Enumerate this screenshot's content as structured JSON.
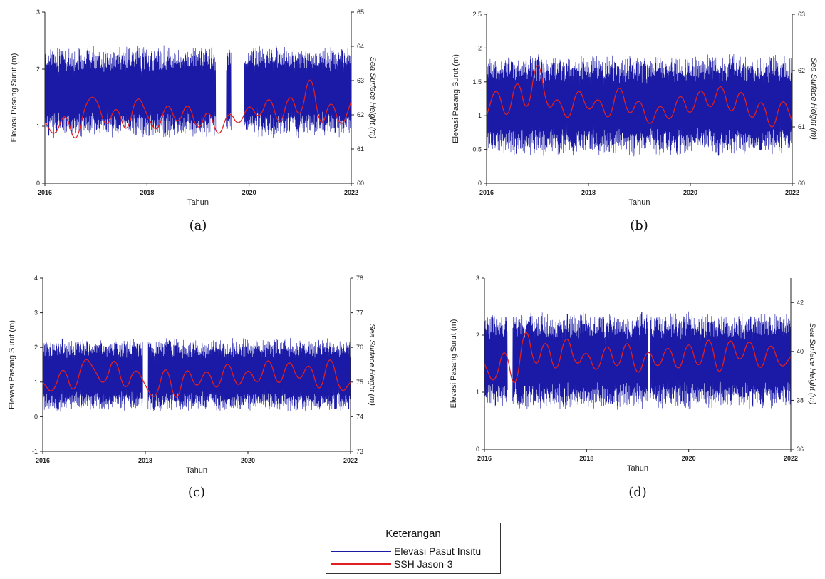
{
  "chart_data": [
    {
      "type": "line",
      "panel": "(a)",
      "caption": "(a)",
      "xlabel": "Tahun",
      "ylabel": "Elevasi Pasang Surut (m)",
      "y2label": "Sea Surface Height (m)",
      "xlim": [
        2016,
        2022
      ],
      "xticks": [
        "2016",
        "2018",
        "2020",
        "2022"
      ],
      "ylim": [
        0,
        3
      ],
      "yticks": [
        "0",
        "1",
        "2",
        "3"
      ],
      "y2lim": [
        60,
        65
      ],
      "y2ticks": [
        "60",
        "61",
        "62",
        "63",
        "64",
        "65"
      ],
      "series": [
        {
          "name": "Elevasi Pasut Insitu",
          "color": "#1a1aa6",
          "axis": "left",
          "mean": 1.6,
          "amplitude": 0.75,
          "gaps": [
            [
              2019.35,
              2019.55
            ],
            [
              2019.65,
              2019.9
            ]
          ]
        },
        {
          "name": "SSH Jason-3",
          "color": "#e02020",
          "axis": "right",
          "x": [
            2016.0,
            2016.2,
            2016.4,
            2016.6,
            2016.8,
            2017.0,
            2017.2,
            2017.4,
            2017.6,
            2017.8,
            2018.0,
            2018.2,
            2018.4,
            2018.6,
            2018.8,
            2019.0,
            2019.2,
            2019.4,
            2019.6,
            2019.8,
            2020.0,
            2020.2,
            2020.4,
            2020.6,
            2020.8,
            2021.0,
            2021.2,
            2021.4,
            2021.6,
            2021.8,
            2022.0
          ],
          "y": [
            61.8,
            61.3,
            62.2,
            61.0,
            62.4,
            62.6,
            61.5,
            62.4,
            61.3,
            62.7,
            62.0,
            61.4,
            62.5,
            61.6,
            62.5,
            61.4,
            62.3,
            61.2,
            62.2,
            61.6,
            62.4,
            61.8,
            62.7,
            61.5,
            62.8,
            61.7,
            63.5,
            61.4,
            62.6,
            61.5,
            62.4
          ]
        }
      ]
    },
    {
      "type": "line",
      "panel": "(b)",
      "caption": "(b)",
      "xlabel": "Tahun",
      "ylabel": "Elevasi Pasang Surut (m)",
      "y2label": "Sea Surface Height (m)",
      "xlim": [
        2016,
        2022
      ],
      "xticks": [
        "2016",
        "2018",
        "2020",
        "2022"
      ],
      "ylim": [
        0,
        2.5
      ],
      "yticks": [
        "0",
        "0.5",
        "1",
        "1.5",
        "2",
        "2.5"
      ],
      "y2lim": [
        60,
        63
      ],
      "y2ticks": [
        "60",
        "61",
        "62",
        "63"
      ],
      "series": [
        {
          "name": "Elevasi Pasut Insitu",
          "color": "#1a1aa6",
          "axis": "left",
          "mean": 1.15,
          "amplitude": 0.7,
          "gaps": []
        },
        {
          "name": "SSH Jason-3",
          "color": "#e02020",
          "axis": "right",
          "x": [
            2016.0,
            2016.2,
            2016.4,
            2016.6,
            2016.8,
            2017.0,
            2017.2,
            2017.4,
            2017.6,
            2017.8,
            2018.0,
            2018.2,
            2018.4,
            2018.6,
            2018.8,
            2019.0,
            2019.2,
            2019.4,
            2019.6,
            2019.8,
            2020.0,
            2020.2,
            2020.4,
            2020.6,
            2020.8,
            2021.0,
            2021.2,
            2021.4,
            2021.6,
            2021.8,
            2022.0
          ],
          "y": [
            61.2,
            61.8,
            61.0,
            62.0,
            61.1,
            62.4,
            61.2,
            61.6,
            61.0,
            61.8,
            61.2,
            61.6,
            61.0,
            61.9,
            61.1,
            61.6,
            60.9,
            61.5,
            61.0,
            61.7,
            61.1,
            61.8,
            61.2,
            61.9,
            61.1,
            61.8,
            61.0,
            61.6,
            60.8,
            61.6,
            61.1
          ]
        }
      ]
    },
    {
      "type": "line",
      "panel": "(c)",
      "caption": "(c)",
      "xlabel": "Tahun",
      "ylabel": "Elevasi Pasang Surut (m)",
      "y2label": "Sea Surface Height (m)",
      "xlim": [
        2016,
        2022
      ],
      "xticks": [
        "2016",
        "2018",
        "2020",
        "2022"
      ],
      "ylim": [
        -1,
        4
      ],
      "yticks": [
        "-1",
        "0",
        "1",
        "2",
        "3",
        "4"
      ],
      "y2lim": [
        73,
        78
      ],
      "y2ticks": [
        "73",
        "74",
        "75",
        "76",
        "77",
        "78"
      ],
      "series": [
        {
          "name": "Elevasi Pasut Insitu",
          "color": "#1a1aa6",
          "axis": "left",
          "mean": 1.2,
          "amplitude": 1.0,
          "gaps": [
            [
              2017.95,
              2018.05
            ]
          ]
        },
        {
          "name": "SSH Jason-3",
          "color": "#e02020",
          "axis": "right",
          "x": [
            2016.0,
            2016.2,
            2016.4,
            2016.6,
            2016.8,
            2017.0,
            2017.2,
            2017.4,
            2017.6,
            2017.8,
            2018.0,
            2018.2,
            2018.4,
            2018.6,
            2018.8,
            2019.0,
            2019.2,
            2019.4,
            2019.6,
            2019.8,
            2020.0,
            2020.2,
            2020.4,
            2020.6,
            2020.8,
            2021.0,
            2021.2,
            2021.4,
            2021.6,
            2021.8,
            2022.0
          ],
          "y": [
            75.0,
            74.6,
            75.6,
            74.5,
            75.8,
            75.4,
            74.8,
            75.9,
            74.6,
            75.5,
            74.9,
            74.4,
            75.7,
            74.2,
            75.6,
            74.7,
            75.5,
            74.6,
            75.8,
            74.7,
            75.5,
            74.8,
            75.9,
            74.7,
            75.8,
            74.9,
            75.7,
            74.5,
            76.0,
            74.6,
            75.0
          ]
        }
      ]
    },
    {
      "type": "line",
      "panel": "(d)",
      "caption": "(d)",
      "xlabel": "Tahun",
      "ylabel": "Elevasi Pasang Surut (m)",
      "y2label": "Sea Surface Height (m)",
      "xlim": [
        2016,
        2022
      ],
      "xticks": [
        "2016",
        "2018",
        "2020",
        "2022"
      ],
      "ylim": [
        0,
        3
      ],
      "yticks": [
        "0",
        "1",
        "2",
        "3"
      ],
      "y2lim": [
        36,
        43
      ],
      "y2ticks": [
        "36",
        "38",
        "40",
        "42"
      ],
      "series": [
        {
          "name": "Elevasi Pasut Insitu",
          "color": "#1a1aa6",
          "axis": "left",
          "mean": 1.55,
          "amplitude": 0.8,
          "gaps": [
            [
              2016.45,
              2016.55
            ],
            [
              2019.2,
              2019.25
            ]
          ]
        },
        {
          "name": "SSH Jason-3",
          "color": "#e02020",
          "axis": "right",
          "x": [
            2016.0,
            2016.2,
            2016.4,
            2016.6,
            2016.8,
            2017.0,
            2017.2,
            2017.4,
            2017.6,
            2017.8,
            2018.0,
            2018.2,
            2018.4,
            2018.6,
            2018.8,
            2019.0,
            2019.2,
            2019.4,
            2019.6,
            2019.8,
            2020.0,
            2020.2,
            2020.4,
            2020.6,
            2020.8,
            2021.0,
            2021.2,
            2021.4,
            2021.6,
            2021.8,
            2022.0
          ],
          "y": [
            39.5,
            38.5,
            40.5,
            38.0,
            41.5,
            39.0,
            40.8,
            38.8,
            41.0,
            39.2,
            40.2,
            38.9,
            40.6,
            39.0,
            40.8,
            38.7,
            40.3,
            39.1,
            40.5,
            38.9,
            40.7,
            39.0,
            41.0,
            38.6,
            40.9,
            39.3,
            40.8,
            38.9,
            40.6,
            39.2,
            39.8
          ]
        }
      ]
    }
  ],
  "legend": {
    "title": "Keterangan",
    "items": [
      {
        "label": "Elevasi Pasut Insitu",
        "color": "#1a1aa6"
      },
      {
        "label": "SSH Jason-3",
        "color": "#e02020"
      }
    ]
  }
}
